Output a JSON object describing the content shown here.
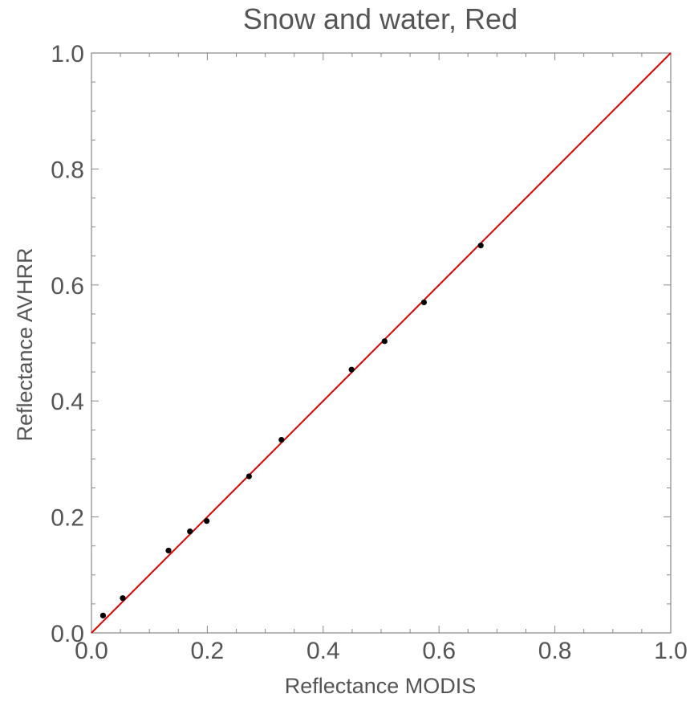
{
  "chart_data": {
    "type": "scatter",
    "title": "Snow and water, Red",
    "xlabel": "Reflectance  MODIS",
    "ylabel": "Reflectance AVHRR",
    "xlim": [
      0.0,
      1.0
    ],
    "ylim": [
      0.0,
      1.0
    ],
    "x_ticks": [
      "0.0",
      "0.2",
      "0.4",
      "0.6",
      "0.8",
      "1.0"
    ],
    "y_ticks": [
      "0.0",
      "0.2",
      "0.4",
      "0.6",
      "0.8",
      "1.0"
    ],
    "grid": false,
    "series": [
      {
        "type": "scatter",
        "color": "#000000",
        "points": [
          {
            "x": 0.02,
            "y": 0.03
          },
          {
            "x": 0.054,
            "y": 0.06
          },
          {
            "x": 0.133,
            "y": 0.142
          },
          {
            "x": 0.17,
            "y": 0.175
          },
          {
            "x": 0.199,
            "y": 0.193
          },
          {
            "x": 0.272,
            "y": 0.27
          },
          {
            "x": 0.328,
            "y": 0.333
          },
          {
            "x": 0.449,
            "y": 0.454
          },
          {
            "x": 0.506,
            "y": 0.503
          },
          {
            "x": 0.574,
            "y": 0.57
          },
          {
            "x": 0.672,
            "y": 0.668
          }
        ]
      },
      {
        "type": "line",
        "color": "#dd0000",
        "points": [
          {
            "x": 0.0,
            "y": 0.0
          },
          {
            "x": 1.0,
            "y": 1.0
          }
        ]
      }
    ]
  }
}
